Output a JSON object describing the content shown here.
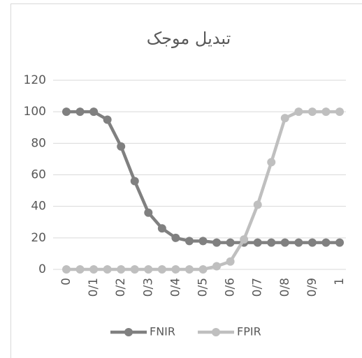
{
  "chart_data": {
    "type": "line",
    "title": "تبدیل موجک",
    "x": [
      0,
      0.05,
      0.1,
      0.15,
      0.2,
      0.25,
      0.3,
      0.35,
      0.4,
      0.45,
      0.5,
      0.55,
      0.6,
      0.65,
      0.7,
      0.75,
      0.8,
      0.85,
      0.9,
      0.95,
      1
    ],
    "series": [
      {
        "name": "FNIR",
        "color": "#808080",
        "values": [
          100,
          100,
          100,
          95,
          78,
          56,
          36,
          26,
          20,
          18,
          18,
          17,
          17,
          17,
          17,
          17,
          17,
          17,
          17,
          17,
          17
        ]
      },
      {
        "name": "FPIR",
        "color": "#bfbfbf",
        "values": [
          0,
          0,
          0,
          0,
          0,
          0,
          0,
          0,
          0,
          0,
          0,
          2,
          5,
          19,
          41,
          68,
          96,
          100,
          100,
          100,
          100
        ]
      }
    ],
    "xlim": [
      0,
      1
    ],
    "xticks": [
      0,
      {
        "value": 0.1,
        "label": "0/1"
      },
      {
        "value": 0.2,
        "label": "0/2"
      },
      {
        "value": 0.3,
        "label": "0/3"
      },
      {
        "value": 0.4,
        "label": "0/4"
      },
      {
        "value": 0.5,
        "label": "0/5"
      },
      {
        "value": 0.6,
        "label": "0/6"
      },
      {
        "value": 0.7,
        "label": "0/7"
      },
      {
        "value": 0.8,
        "label": "0/8"
      },
      {
        "value": 0.9,
        "label": "0/9"
      },
      1
    ],
    "ylim": [
      0,
      120
    ],
    "yticks": [
      0,
      20,
      40,
      60,
      80,
      100,
      120
    ],
    "grid": true,
    "legend": "bottom"
  }
}
